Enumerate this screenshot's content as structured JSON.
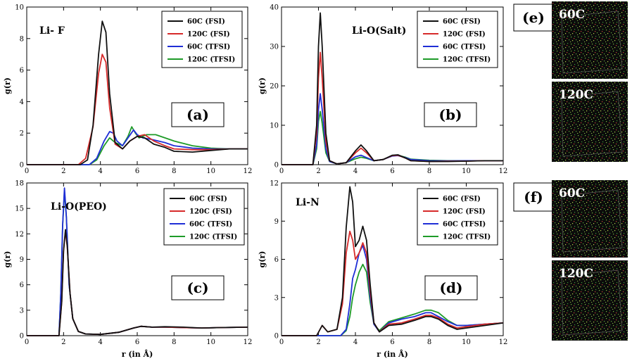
{
  "colors": {
    "60C (FSI)": "#111111",
    "120C (FSI)": "#d62a2a",
    "60C (TFSI)": "#1f2ed6",
    "120C (TFSI)": "#1e9b28"
  },
  "chart_data": [
    {
      "type": "line",
      "panel": "(a)",
      "title": "Li- F",
      "xlabel": "",
      "ylabel": "g(r)",
      "xlim": [
        0,
        12
      ],
      "ylim": [
        0,
        10
      ],
      "xticks": [
        0,
        2,
        4,
        6,
        8,
        10,
        12
      ],
      "yticks": [
        0,
        2,
        4,
        6,
        8,
        10
      ],
      "legend": [
        "60C (FSI)",
        "120C (FSI)",
        "60C (TFSI)",
        "120C (TFSI)"
      ],
      "series": [
        {
          "name": "60C (FSI)",
          "x": [
            0,
            2.9,
            3.3,
            3.6,
            3.9,
            4.1,
            4.3,
            4.5,
            4.8,
            5.2,
            5.6,
            6.0,
            6.4,
            6.9,
            7.5,
            8.0,
            9.0,
            10.0,
            11.0,
            12.0
          ],
          "y": [
            0,
            0,
            0.3,
            2.5,
            7.0,
            9.1,
            8.4,
            4.5,
            1.4,
            1.0,
            1.5,
            1.8,
            1.7,
            1.3,
            1.1,
            0.85,
            0.8,
            0.9,
            1.0,
            1.0
          ]
        },
        {
          "name": "120C (FSI)",
          "x": [
            0,
            2.8,
            3.2,
            3.6,
            3.9,
            4.1,
            4.3,
            4.5,
            4.8,
            5.2,
            5.6,
            6.0,
            6.4,
            6.9,
            7.5,
            8.0,
            9.0,
            10.0,
            11.0,
            12.0
          ],
          "y": [
            0,
            0,
            0.4,
            2.4,
            5.8,
            7.0,
            6.5,
            3.6,
            1.3,
            1.0,
            1.5,
            1.8,
            1.9,
            1.5,
            1.2,
            1.0,
            0.95,
            0.95,
            1.0,
            1.0
          ]
        },
        {
          "name": "60C (TFSI)",
          "x": [
            0,
            3.4,
            3.8,
            4.2,
            4.5,
            4.7,
            4.9,
            5.2,
            5.5,
            5.8,
            6.0,
            6.3,
            6.8,
            7.5,
            8.0,
            9.0,
            10.0,
            11.0,
            12.0
          ],
          "y": [
            0,
            0,
            0.4,
            1.5,
            2.1,
            2.0,
            1.5,
            1.2,
            1.7,
            2.2,
            1.9,
            1.7,
            1.6,
            1.4,
            1.2,
            1.05,
            1.0,
            1.0,
            1.0
          ]
        },
        {
          "name": "120C (TFSI)",
          "x": [
            0,
            3.4,
            3.8,
            4.2,
            4.5,
            4.8,
            5.2,
            5.5,
            5.7,
            5.9,
            6.1,
            6.5,
            7.0,
            7.5,
            8.0,
            8.5,
            9.0,
            10.0,
            11.0,
            12.0
          ],
          "y": [
            0,
            0,
            0.3,
            1.2,
            1.7,
            1.4,
            1.2,
            1.8,
            2.4,
            2.0,
            1.7,
            1.9,
            1.9,
            1.7,
            1.5,
            1.35,
            1.2,
            1.05,
            1.0,
            1.0
          ]
        }
      ]
    },
    {
      "type": "line",
      "panel": "(b)",
      "title": "Li-O(Salt)",
      "xlabel": "",
      "ylabel": "g(r)",
      "xlim": [
        0,
        12
      ],
      "ylim": [
        0,
        40
      ],
      "xticks": [
        0,
        2,
        4,
        6,
        8,
        10,
        12
      ],
      "yticks": [
        0,
        10,
        20,
        30,
        40
      ],
      "legend": [
        "60C (FSI)",
        "120C (FSI)",
        "60C (TFSI)",
        "120C (TFSI)"
      ],
      "series": [
        {
          "name": "60C (FSI)",
          "x": [
            0,
            1.7,
            1.9,
            2.0,
            2.1,
            2.2,
            2.4,
            2.6,
            3.0,
            3.5,
            4.0,
            4.3,
            4.6,
            5.0,
            5.5,
            6.0,
            6.3,
            6.7,
            7.0,
            8.0,
            9.0,
            10.0,
            11.0,
            12.0
          ],
          "y": [
            0,
            0,
            10,
            30,
            38.5,
            30,
            8,
            1,
            0.2,
            0.5,
            3.5,
            5.0,
            3.5,
            1.0,
            1.3,
            2.4,
            2.5,
            1.7,
            1.0,
            0.8,
            0.8,
            0.9,
            1.0,
            1.0
          ]
        },
        {
          "name": "120C (FSI)",
          "x": [
            0,
            1.7,
            1.9,
            2.0,
            2.1,
            2.2,
            2.4,
            2.6,
            3.0,
            3.5,
            4.0,
            4.3,
            4.6,
            5.0,
            5.5,
            6.0,
            6.3,
            6.7,
            7.0,
            8.0,
            9.0,
            10.0,
            11.0,
            12.0
          ],
          "y": [
            0,
            0,
            8,
            22,
            28.5,
            22,
            6,
            1,
            0.2,
            0.5,
            3.0,
            4.2,
            3.0,
            1.0,
            1.3,
            2.3,
            2.4,
            1.7,
            1.0,
            0.8,
            0.85,
            0.9,
            1.0,
            1.0
          ]
        },
        {
          "name": "60C (TFSI)",
          "x": [
            0,
            1.7,
            1.9,
            2.0,
            2.1,
            2.2,
            2.4,
            2.6,
            3.0,
            3.5,
            4.0,
            4.3,
            4.6,
            5.0,
            5.5,
            6.0,
            6.3,
            6.7,
            7.0,
            8.0,
            9.0,
            10.0,
            11.0,
            12.0
          ],
          "y": [
            0,
            0,
            5,
            14,
            18,
            14,
            4,
            0.8,
            0.2,
            0.5,
            2.0,
            2.4,
            1.8,
            1.0,
            1.3,
            2.2,
            2.3,
            1.8,
            1.3,
            1.0,
            0.95,
            1.0,
            1.0,
            1.0
          ]
        },
        {
          "name": "120C (TFSI)",
          "x": [
            0,
            1.7,
            1.9,
            2.0,
            2.1,
            2.2,
            2.4,
            2.6,
            3.0,
            3.5,
            4.0,
            4.3,
            4.6,
            5.0,
            5.5,
            6.0,
            6.3,
            6.7,
            7.0,
            8.0,
            9.0,
            10.0,
            11.0,
            12.0
          ],
          "y": [
            0,
            0,
            4,
            11,
            13.5,
            10.5,
            3,
            0.8,
            0.2,
            0.5,
            1.5,
            1.9,
            1.6,
            1.0,
            1.3,
            2.3,
            2.4,
            1.9,
            1.4,
            1.1,
            1.0,
            1.0,
            1.0,
            1.0
          ]
        }
      ]
    },
    {
      "type": "line",
      "panel": "(c)",
      "title": "Li-O(PEO)",
      "xlabel": "r (in Å)",
      "ylabel": "g(r)",
      "xlim": [
        0,
        12
      ],
      "ylim": [
        0,
        18
      ],
      "xticks": [
        0,
        2,
        4,
        6,
        8,
        10,
        12
      ],
      "yticks": [
        0,
        3,
        6,
        9,
        12,
        15,
        18
      ],
      "legend": [
        "60C (FSI)",
        "120C (FSI)",
        "60C (TFSI)",
        "120C (TFSI)"
      ],
      "series": [
        {
          "name": "60C (FSI)",
          "x": [
            0,
            1.75,
            1.9,
            2.0,
            2.1,
            2.2,
            2.35,
            2.5,
            2.8,
            3.2,
            4.0,
            5.0,
            5.8,
            6.2,
            6.8,
            7.5,
            8.5,
            9.5,
            10.5,
            12.0
          ],
          "y": [
            0,
            0,
            4,
            10,
            12.5,
            10.5,
            5,
            2,
            0.5,
            0.2,
            0.15,
            0.4,
            0.9,
            1.1,
            1.0,
            1.05,
            1.0,
            0.9,
            0.95,
            1.0
          ]
        },
        {
          "name": "120C (FSI)",
          "x": [
            0,
            1.75,
            1.9,
            2.0,
            2.1,
            2.2,
            2.35,
            2.5,
            2.8,
            3.2,
            4.0,
            5.0,
            5.8,
            6.2,
            6.8,
            7.5,
            8.5,
            9.5,
            10.5,
            12.0
          ],
          "y": [
            0,
            0,
            4,
            10,
            12.3,
            10.5,
            5,
            2,
            0.5,
            0.2,
            0.15,
            0.4,
            0.9,
            1.1,
            1.0,
            1.0,
            0.95,
            0.9,
            0.95,
            1.0
          ]
        },
        {
          "name": "60C (TFSI)",
          "x": [
            0,
            1.75,
            1.85,
            1.95,
            2.05,
            2.15,
            2.3,
            2.5,
            2.8,
            3.2,
            4.0,
            5.0,
            5.8,
            6.2,
            6.8,
            7.5,
            8.5,
            9.5,
            10.5,
            12.0
          ],
          "y": [
            0,
            0,
            5,
            13,
            17.4,
            14,
            6,
            2,
            0.5,
            0.2,
            0.15,
            0.4,
            0.9,
            1.1,
            1.0,
            1.0,
            0.95,
            0.9,
            0.95,
            1.0
          ]
        },
        {
          "name": "120C (TFSI)",
          "x": [
            0,
            1.75,
            1.85,
            1.95,
            2.05,
            2.15,
            2.3,
            2.5,
            2.8,
            3.2,
            4.0,
            5.0,
            5.8,
            6.2,
            6.8,
            7.5,
            8.5,
            9.5,
            10.5,
            12.0
          ],
          "y": [
            0,
            0,
            5,
            13,
            17.0,
            14,
            6,
            2,
            0.5,
            0.2,
            0.15,
            0.4,
            0.9,
            1.1,
            1.0,
            1.0,
            0.95,
            0.9,
            0.95,
            1.0
          ]
        }
      ]
    },
    {
      "type": "line",
      "panel": "(d)",
      "title": "Li-N",
      "xlabel": "r (in Å)",
      "ylabel": "g(r)",
      "xlim": [
        0,
        12
      ],
      "ylim": [
        0,
        12
      ],
      "xticks": [
        0,
        2,
        4,
        6,
        8,
        10,
        12
      ],
      "yticks": [
        0,
        3,
        6,
        9,
        12
      ],
      "legend": [
        "60C (FSI)",
        "120C (FSI)",
        "60C (TFSI)",
        "120C (TFSI)"
      ],
      "series": [
        {
          "name": "60C (FSI)",
          "x": [
            0,
            1.9,
            2.2,
            2.5,
            3.0,
            3.3,
            3.5,
            3.7,
            3.85,
            4.0,
            4.2,
            4.4,
            4.6,
            4.8,
            5.0,
            5.3,
            5.8,
            6.5,
            7.2,
            7.8,
            8.1,
            8.5,
            9.0,
            9.5,
            10.0,
            11.0,
            12.0
          ],
          "y": [
            0,
            0,
            0.8,
            0.3,
            0.5,
            3.0,
            8.5,
            11.7,
            10.5,
            7.0,
            7.5,
            8.6,
            7.5,
            4.0,
            1.0,
            0.3,
            0.8,
            0.9,
            1.2,
            1.5,
            1.5,
            1.3,
            0.8,
            0.5,
            0.6,
            0.8,
            1.0
          ]
        },
        {
          "name": "120C (FSI)",
          "x": [
            0,
            1.9,
            2.2,
            2.5,
            3.0,
            3.3,
            3.5,
            3.7,
            3.85,
            4.0,
            4.2,
            4.4,
            4.6,
            4.8,
            5.0,
            5.3,
            5.8,
            6.5,
            7.2,
            7.8,
            8.1,
            8.5,
            9.0,
            9.5,
            10.0,
            11.0,
            12.0
          ],
          "y": [
            0,
            0,
            0.8,
            0.3,
            0.5,
            2.5,
            6.5,
            8.2,
            7.5,
            6.0,
            6.5,
            7.3,
            6.5,
            3.5,
            1.0,
            0.3,
            0.9,
            1.0,
            1.3,
            1.6,
            1.6,
            1.4,
            0.9,
            0.6,
            0.7,
            0.9,
            1.0
          ]
        },
        {
          "name": "60C (TFSI)",
          "x": [
            0,
            3.2,
            3.5,
            3.7,
            3.85,
            4.0,
            4.2,
            4.4,
            4.6,
            4.8,
            5.0,
            5.3,
            5.8,
            6.5,
            7.2,
            7.8,
            8.1,
            8.5,
            9.0,
            9.5,
            10.0,
            11.0,
            12.0
          ],
          "y": [
            0,
            0,
            0.5,
            2.5,
            4.5,
            5.2,
            6.5,
            7.1,
            6.0,
            3.0,
            0.9,
            0.3,
            1.0,
            1.3,
            1.5,
            1.8,
            1.8,
            1.5,
            1.1,
            0.8,
            0.8,
            0.9,
            1.0
          ]
        },
        {
          "name": "120C (TFSI)",
          "x": [
            0,
            3.2,
            3.5,
            3.7,
            3.85,
            4.0,
            4.2,
            4.4,
            4.6,
            4.8,
            5.0,
            5.3,
            5.8,
            6.5,
            7.2,
            7.8,
            8.1,
            8.5,
            9.0,
            9.5,
            10.0,
            11.0,
            12.0
          ],
          "y": [
            0,
            0,
            0.4,
            1.5,
            3.0,
            4.0,
            5.0,
            5.6,
            5.0,
            2.6,
            0.9,
            0.4,
            1.1,
            1.4,
            1.7,
            2.0,
            2.0,
            1.8,
            1.2,
            0.8,
            0.8,
            0.9,
            1.0
          ]
        }
      ]
    }
  ],
  "snapshots": [
    {
      "group": "(e)",
      "panels": [
        {
          "label": "60C"
        },
        {
          "label": "120C"
        }
      ]
    },
    {
      "group": "(f)",
      "panels": [
        {
          "label": "60C"
        },
        {
          "label": "120C"
        }
      ]
    }
  ]
}
